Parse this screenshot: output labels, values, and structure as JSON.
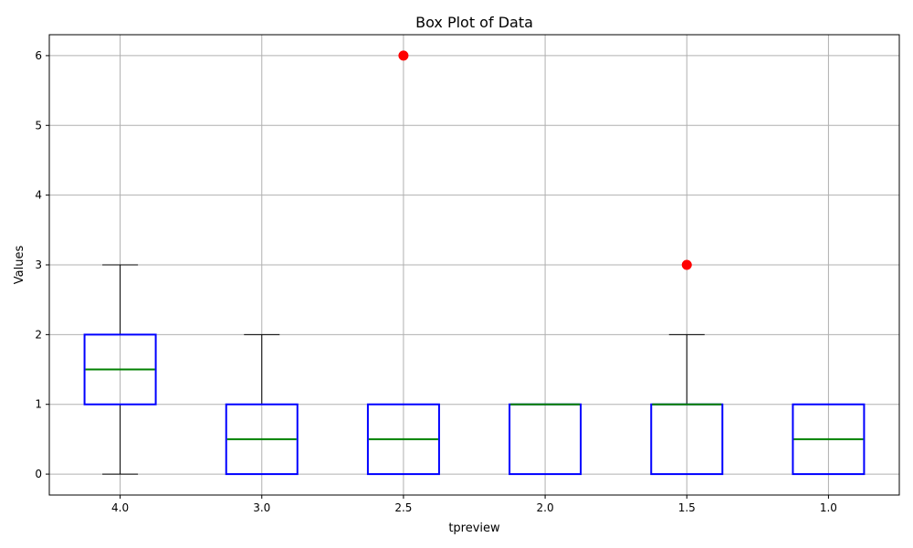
{
  "chart_data": {
    "type": "box",
    "title": "Box Plot of Data",
    "xlabel": "tpreview",
    "ylabel": "Values",
    "ylim": [
      -0.3,
      6.3
    ],
    "yticks": [
      "0",
      "1",
      "2",
      "3",
      "4",
      "5",
      "6"
    ],
    "grid": true,
    "categories": [
      "4.0",
      "3.0",
      "2.5",
      "2.0",
      "1.5",
      "1.0"
    ],
    "boxes": [
      {
        "category": "4.0",
        "whisker_low": 0,
        "q1": 1,
        "median": 1.5,
        "q3": 2,
        "whisker_high": 3,
        "outliers": []
      },
      {
        "category": "3.0",
        "whisker_low": 0,
        "q1": 0,
        "median": 0.5,
        "q3": 1,
        "whisker_high": 2,
        "outliers": []
      },
      {
        "category": "2.5",
        "whisker_low": 0,
        "q1": 0,
        "median": 0.5,
        "q3": 1,
        "whisker_high": 1,
        "outliers": [
          6
        ]
      },
      {
        "category": "2.0",
        "whisker_low": 0,
        "q1": 0,
        "median": 1,
        "q3": 1,
        "whisker_high": 1,
        "outliers": []
      },
      {
        "category": "1.5",
        "whisker_low": 0,
        "q1": 0,
        "median": 1,
        "q3": 1,
        "whisker_high": 2,
        "outliers": [
          3
        ]
      },
      {
        "category": "1.0",
        "whisker_low": 0,
        "q1": 0,
        "median": 0.5,
        "q3": 1,
        "whisker_high": 1,
        "outliers": []
      }
    ],
    "colors": {
      "box": "#0000ff",
      "median": "#008000",
      "whisker": "#000000",
      "outlier": "#ff0000",
      "grid": "#b0b0b0"
    }
  }
}
